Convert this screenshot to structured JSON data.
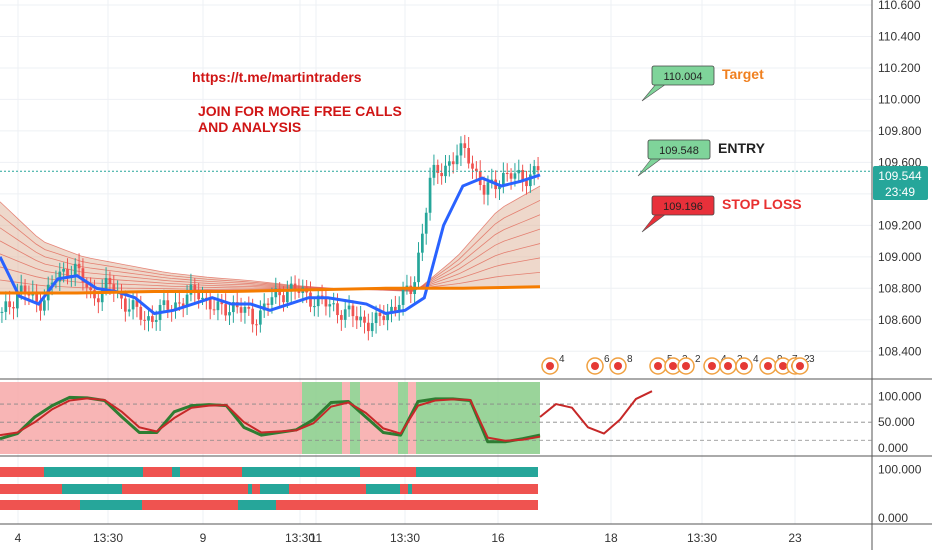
{
  "promo": {
    "link": "https://t.me/martintraders",
    "line1": "JOIN FOR MORE FREE CALLS",
    "line2": "AND ANALYSIS"
  },
  "callouts": [
    {
      "value": "110.004",
      "label": "Target",
      "bg": "#7fd49a",
      "label_color": "#f08020"
    },
    {
      "value": "109.548",
      "label": "ENTRY",
      "bg": "#7fd49a",
      "label_color": "#222222"
    },
    {
      "value": "109.196",
      "label": "STOP LOSS",
      "bg": "#e8303a",
      "label_color": "#e83030"
    }
  ],
  "price_badge": {
    "price": "109.544",
    "countdown": "23:49",
    "bg": "#26a69a"
  },
  "colors": {
    "up": "#26a69a",
    "down": "#ef5350",
    "ema_blue": "#2962ff",
    "ema_orange": "#f57c00",
    "stoch_k": "#2e7d32",
    "stoch_d": "#c62828",
    "bg_red": "#f7a8a8",
    "bg_green": "#88cc88"
  },
  "chart_data": [
    {
      "type": "candlestick",
      "ylim": [
        108.3,
        110.6
      ],
      "yticks": [
        "110.600",
        "110.400",
        "110.200",
        "110.000",
        "109.800",
        "109.600",
        "109.400",
        "109.200",
        "109.000",
        "108.800",
        "108.600",
        "108.400"
      ],
      "close_path": [
        108.62,
        108.8,
        108.7,
        108.85,
        108.95,
        108.75,
        108.82,
        108.7,
        108.6,
        108.66,
        108.72,
        108.78,
        108.65,
        108.7,
        108.6,
        108.72,
        108.8,
        108.76,
        108.7,
        108.66,
        108.6,
        108.58,
        108.7,
        108.8,
        109.5,
        109.6,
        109.68,
        109.4,
        109.52,
        109.5,
        109.55
      ],
      "ema_fast": [
        109.0,
        108.75,
        108.7,
        108.86,
        108.88,
        108.8,
        108.78,
        108.74,
        108.64,
        108.66,
        108.7,
        108.74,
        108.7,
        108.7,
        108.66,
        108.7,
        108.74,
        108.74,
        108.72,
        108.7,
        108.64,
        108.66,
        108.74,
        109.2,
        109.45,
        109.5,
        109.45,
        109.48,
        109.52
      ],
      "ema_slow": [
        108.77,
        108.77,
        108.78,
        108.78,
        108.79,
        108.8,
        108.8,
        108.81
      ],
      "ribbon_top": [
        109.35,
        109.1,
        109.0,
        108.95,
        108.9,
        108.87,
        108.85,
        108.82,
        108.8,
        108.79,
        108.78,
        109.0,
        109.3,
        109.45
      ],
      "current_price": 109.544
    },
    {
      "type": "line",
      "name": "",
      "ylim": [
        0,
        120
      ],
      "yticks": [
        "100.000",
        "50.000",
        "0.000"
      ],
      "levels": [
        85,
        50,
        15
      ],
      "k": [
        18,
        28,
        60,
        82,
        98,
        97,
        92,
        60,
        30,
        30,
        70,
        82,
        84,
        82,
        40,
        25,
        30,
        35,
        55,
        88,
        90,
        60,
        30,
        25,
        90,
        95,
        95,
        92,
        12,
        12,
        18,
        25
      ],
      "d": [
        25,
        30,
        50,
        75,
        92,
        96,
        93,
        70,
        40,
        32,
        58,
        78,
        82,
        83,
        50,
        30,
        32,
        34,
        48,
        80,
        88,
        68,
        38,
        28,
        82,
        92,
        94,
        93,
        20,
        14,
        16,
        22
      ],
      "projection": [
        60,
        85,
        78,
        40,
        28,
        55,
        95,
        110
      ]
    },
    {
      "type": "bar",
      "ylim": [
        0,
        120
      ],
      "yticks": [
        "100.000",
        "0.000"
      ]
    }
  ],
  "xaxis": [
    "4",
    "13:30",
    "9",
    "13:30",
    "11",
    "13:30",
    "16",
    "18",
    "13:30",
    "23"
  ],
  "event_badges": [
    "4",
    "6",
    "8",
    "5",
    "2",
    "2",
    "4",
    "3",
    "4",
    "9",
    "7",
    "2",
    "3"
  ]
}
